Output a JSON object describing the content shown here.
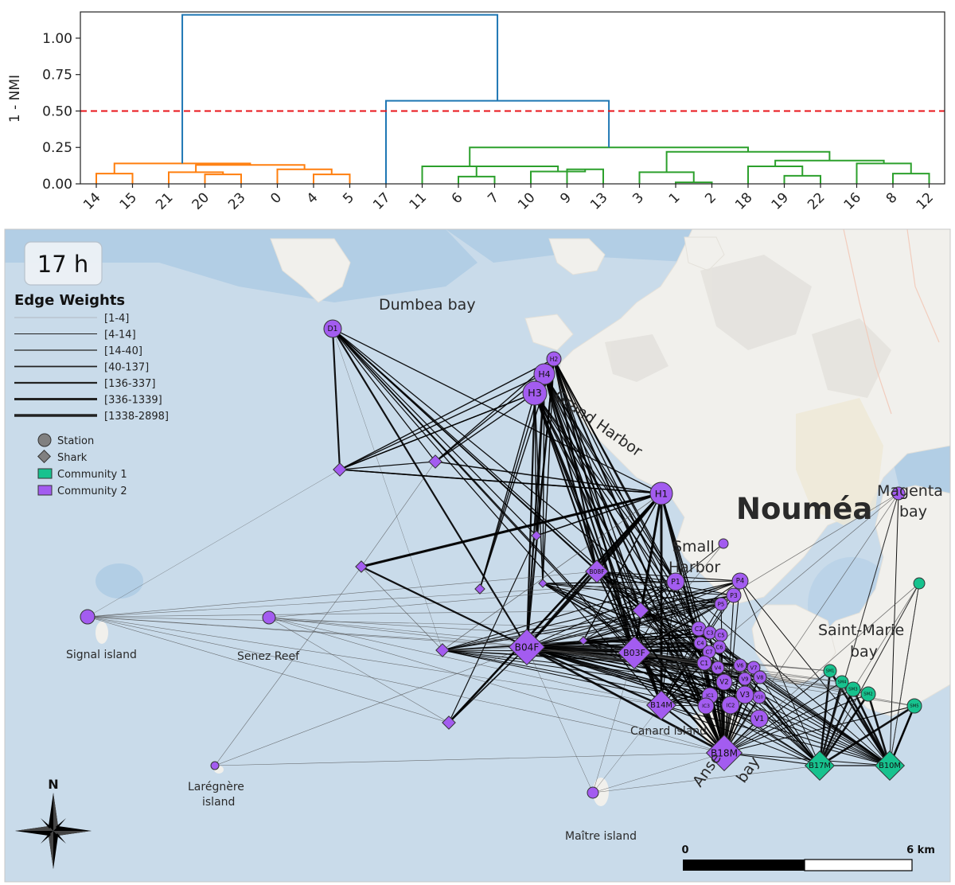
{
  "dendrogram": {
    "ylabel": "1 - NMI",
    "yticks": [
      "0.00",
      "0.25",
      "0.50",
      "0.75",
      "1.00"
    ],
    "ytick_values": [
      0,
      0.25,
      0.5,
      0.75,
      1.0
    ],
    "ylim": [
      0,
      1.18
    ],
    "threshold": 0.5,
    "threshold_color": "#e8141a",
    "leaf_order": [
      "14",
      "15",
      "21",
      "20",
      "23",
      "0",
      "4",
      "5",
      "17",
      "11",
      "6",
      "7",
      "10",
      "9",
      "13",
      "3",
      "1",
      "2",
      "18",
      "19",
      "22",
      "16",
      "8",
      "12"
    ],
    "cluster_colors": {
      "c1": "#ff7f0e",
      "c2": "#2ca02c",
      "root": "#1f77b4"
    },
    "links": [
      {
        "a": 0,
        "b": 1,
        "h": 0.07,
        "color": "c1"
      },
      {
        "a": 3,
        "b": 4,
        "h": 0.065,
        "color": "c1"
      },
      {
        "a": 2,
        "b": "n1",
        "h": 0.08,
        "color": "c1"
      },
      {
        "a": 6,
        "b": 7,
        "h": 0.065,
        "color": "c1"
      },
      {
        "a": 5,
        "b": "n3",
        "h": 0.1,
        "color": "c1"
      },
      {
        "a": "n2",
        "b": "n4",
        "h": 0.13,
        "color": "c1"
      },
      {
        "a": "n0",
        "b": "n5",
        "h": 0.14,
        "color": "c1"
      },
      {
        "a": 10,
        "b": 11,
        "h": 0.05,
        "color": "c2"
      },
      {
        "a": 13,
        "b": 14,
        "h": 0.1,
        "color": "c2"
      },
      {
        "a": 12,
        "b": "n8",
        "h": 0.085,
        "color": "c2"
      },
      {
        "a": "n7",
        "b": "n9",
        "h": 0.12,
        "color": "c2"
      },
      {
        "a": 9,
        "b": "n10",
        "h": 0.12,
        "color": "c2"
      },
      {
        "a": 16,
        "b": 17,
        "h": 0.01,
        "color": "c2"
      },
      {
        "a": 15,
        "b": "n12",
        "h": 0.08,
        "color": "c2"
      },
      {
        "a": 19,
        "b": 20,
        "h": 0.055,
        "color": "c2"
      },
      {
        "a": 18,
        "b": "n14",
        "h": 0.12,
        "color": "c2"
      },
      {
        "a": 22,
        "b": 23,
        "h": 0.07,
        "color": "c2"
      },
      {
        "a": 21,
        "b": "n16",
        "h": 0.14,
        "color": "c2"
      },
      {
        "a": "n15",
        "b": "n17",
        "h": 0.16,
        "color": "c2"
      },
      {
        "a": "n13",
        "b": "n18",
        "h": 0.22,
        "color": "c2"
      },
      {
        "a": "n11",
        "b": "n19",
        "h": 0.25,
        "color": "c2"
      },
      {
        "a": 8,
        "b": "n20",
        "h": 0.57,
        "color": "root"
      },
      {
        "a": "n6",
        "b": "n21",
        "h": 1.16,
        "color": "root"
      }
    ]
  },
  "map": {
    "time_label": "17 h",
    "places": [
      {
        "id": "dumbea",
        "text": "Dumbea bay"
      },
      {
        "id": "grand-harbor",
        "text": "Grand Harbor"
      },
      {
        "id": "noumea",
        "text": "Nouméa"
      },
      {
        "id": "magenta-1",
        "text": "Magenta"
      },
      {
        "id": "magenta-2",
        "text": "bay"
      },
      {
        "id": "small-harbor-1",
        "text": "Small"
      },
      {
        "id": "small-harbor-2",
        "text": "Harbor"
      },
      {
        "id": "saint-marie-1",
        "text": "Saint-Marie"
      },
      {
        "id": "saint-marie-2",
        "text": "bay"
      },
      {
        "id": "signal",
        "text": "Signal island"
      },
      {
        "id": "senez",
        "text": "Senez Reef"
      },
      {
        "id": "canard",
        "text": "Canard island"
      },
      {
        "id": "laregnere-1",
        "text": "Larégnère"
      },
      {
        "id": "laregnere-2",
        "text": "island"
      },
      {
        "id": "maitre",
        "text": "Maître island"
      },
      {
        "id": "anse-1",
        "text": "Anse"
      },
      {
        "id": "anse-2",
        "text": "bay"
      }
    ],
    "legend": {
      "edge_title": "Edge Weights",
      "edge_bins": [
        "[1-4]",
        "[4-14]",
        "[14-40]",
        "[40-137]",
        "[136-337]",
        "[336-1339]",
        "[1338-2898]"
      ],
      "node_types": [
        "Station",
        "Shark"
      ],
      "communities": [
        {
          "label": "Community 1",
          "color": "#17c28e"
        },
        {
          "label": "Community 2",
          "color": "#a35cf0"
        }
      ]
    },
    "north_label": "N",
    "scale_start": "0",
    "scale_end": "6 km",
    "colors": {
      "community1": "#17c28e",
      "community2": "#a35cf0",
      "sea": "#c9dbea",
      "deep_sea": "#a9c8e3",
      "land": "#f3f2ee"
    },
    "nodes": [
      {
        "id": "D1",
        "kind": "station",
        "c": 2,
        "r": 11
      },
      {
        "id": "H2",
        "kind": "station",
        "c": 2,
        "r": 9
      },
      {
        "id": "H4",
        "kind": "station",
        "c": 2,
        "r": 13
      },
      {
        "id": "H3",
        "kind": "station",
        "c": 2,
        "r": 15
      },
      {
        "id": "H1",
        "kind": "station",
        "c": 2,
        "r": 14
      },
      {
        "id": "P1",
        "kind": "station",
        "c": 2,
        "r": 11
      },
      {
        "id": "P4",
        "kind": "station",
        "c": 2,
        "r": 10
      },
      {
        "id": "P3",
        "kind": "station",
        "c": 2,
        "r": 9
      },
      {
        "id": "P5",
        "kind": "station",
        "c": 2,
        "r": 8
      },
      {
        "id": "B04F",
        "kind": "shark",
        "c": 2,
        "r": 22
      },
      {
        "id": "B03F",
        "kind": "shark",
        "c": 2,
        "r": 20
      },
      {
        "id": "B08F",
        "kind": "shark",
        "c": 2,
        "r": 14
      },
      {
        "id": "B14M",
        "kind": "shark",
        "c": 2,
        "r": 18
      },
      {
        "id": "B18M",
        "kind": "shark",
        "c": 2,
        "r": 22
      },
      {
        "id": "C2",
        "kind": "station",
        "c": 2,
        "r": 9
      },
      {
        "id": "C3",
        "kind": "station",
        "c": 2,
        "r": 8
      },
      {
        "id": "C4",
        "kind": "station",
        "c": 2,
        "r": 8
      },
      {
        "id": "C5",
        "kind": "station",
        "c": 2,
        "r": 8
      },
      {
        "id": "C6",
        "kind": "station",
        "c": 2,
        "r": 8
      },
      {
        "id": "C7",
        "kind": "station",
        "c": 2,
        "r": 8
      },
      {
        "id": "C1",
        "kind": "station",
        "c": 2,
        "r": 9
      },
      {
        "id": "V4",
        "kind": "station",
        "c": 2,
        "r": 8
      },
      {
        "id": "V6",
        "kind": "station",
        "c": 2,
        "r": 8
      },
      {
        "id": "V7",
        "kind": "station",
        "c": 2,
        "r": 8
      },
      {
        "id": "V8",
        "kind": "station",
        "c": 2,
        "r": 8
      },
      {
        "id": "V2",
        "kind": "station",
        "c": 2,
        "r": 10
      },
      {
        "id": "V9",
        "kind": "station",
        "c": 2,
        "r": 8
      },
      {
        "id": "V10",
        "kind": "station",
        "c": 2,
        "r": 8
      },
      {
        "id": "V3",
        "kind": "station",
        "c": 2,
        "r": 11
      },
      {
        "id": "V1",
        "kind": "station",
        "c": 2,
        "r": 11
      },
      {
        "id": "IC1",
        "kind": "station",
        "c": 2,
        "r": 10
      },
      {
        "id": "IC2",
        "kind": "station",
        "c": 2,
        "r": 11
      },
      {
        "id": "IC3",
        "kind": "station",
        "c": 2,
        "r": 10
      },
      {
        "id": "SM1",
        "kind": "station",
        "c": 1,
        "r": 8
      },
      {
        "id": "SM2",
        "kind": "station",
        "c": 1,
        "r": 9
      },
      {
        "id": "SM3",
        "kind": "station",
        "c": 1,
        "r": 9
      },
      {
        "id": "SM4",
        "kind": "station",
        "c": 1,
        "r": 8
      },
      {
        "id": "SM5",
        "kind": "station",
        "c": 1,
        "r": 9
      },
      {
        "id": "B17M",
        "kind": "shark",
        "c": 1,
        "r": 18
      },
      {
        "id": "B10M",
        "kind": "shark",
        "c": 1,
        "r": 18
      },
      {
        "id": "",
        "kind": "station",
        "c": 2,
        "r": 9
      },
      {
        "id": "",
        "kind": "station",
        "c": 2,
        "r": 8
      },
      {
        "id": "",
        "kind": "station",
        "c": 2,
        "r": 5
      },
      {
        "id": "",
        "kind": "station",
        "c": 2,
        "r": 7
      },
      {
        "id": "",
        "kind": "station",
        "c": 2,
        "r": 8
      },
      {
        "id": "",
        "kind": "station",
        "c": 2,
        "r": 6
      },
      {
        "id": "",
        "kind": "station",
        "c": 1,
        "r": 7
      },
      {
        "id": "",
        "kind": "shark",
        "c": 2,
        "r": 8
      },
      {
        "id": "",
        "kind": "shark",
        "c": 2,
        "r": 8
      },
      {
        "id": "",
        "kind": "shark",
        "c": 2,
        "r": 6
      },
      {
        "id": "",
        "kind": "shark",
        "c": 2,
        "r": 6
      },
      {
        "id": "",
        "kind": "shark",
        "c": 2,
        "r": 5
      },
      {
        "id": "",
        "kind": "shark",
        "c": 2,
        "r": 10
      },
      {
        "id": "",
        "kind": "shark",
        "c": 2,
        "r": 8
      },
      {
        "id": "",
        "kind": "shark",
        "c": 2,
        "r": 5
      },
      {
        "id": "",
        "kind": "shark",
        "c": 2,
        "r": 8
      },
      {
        "id": "",
        "kind": "shark",
        "c": 2,
        "r": 7
      }
    ]
  }
}
